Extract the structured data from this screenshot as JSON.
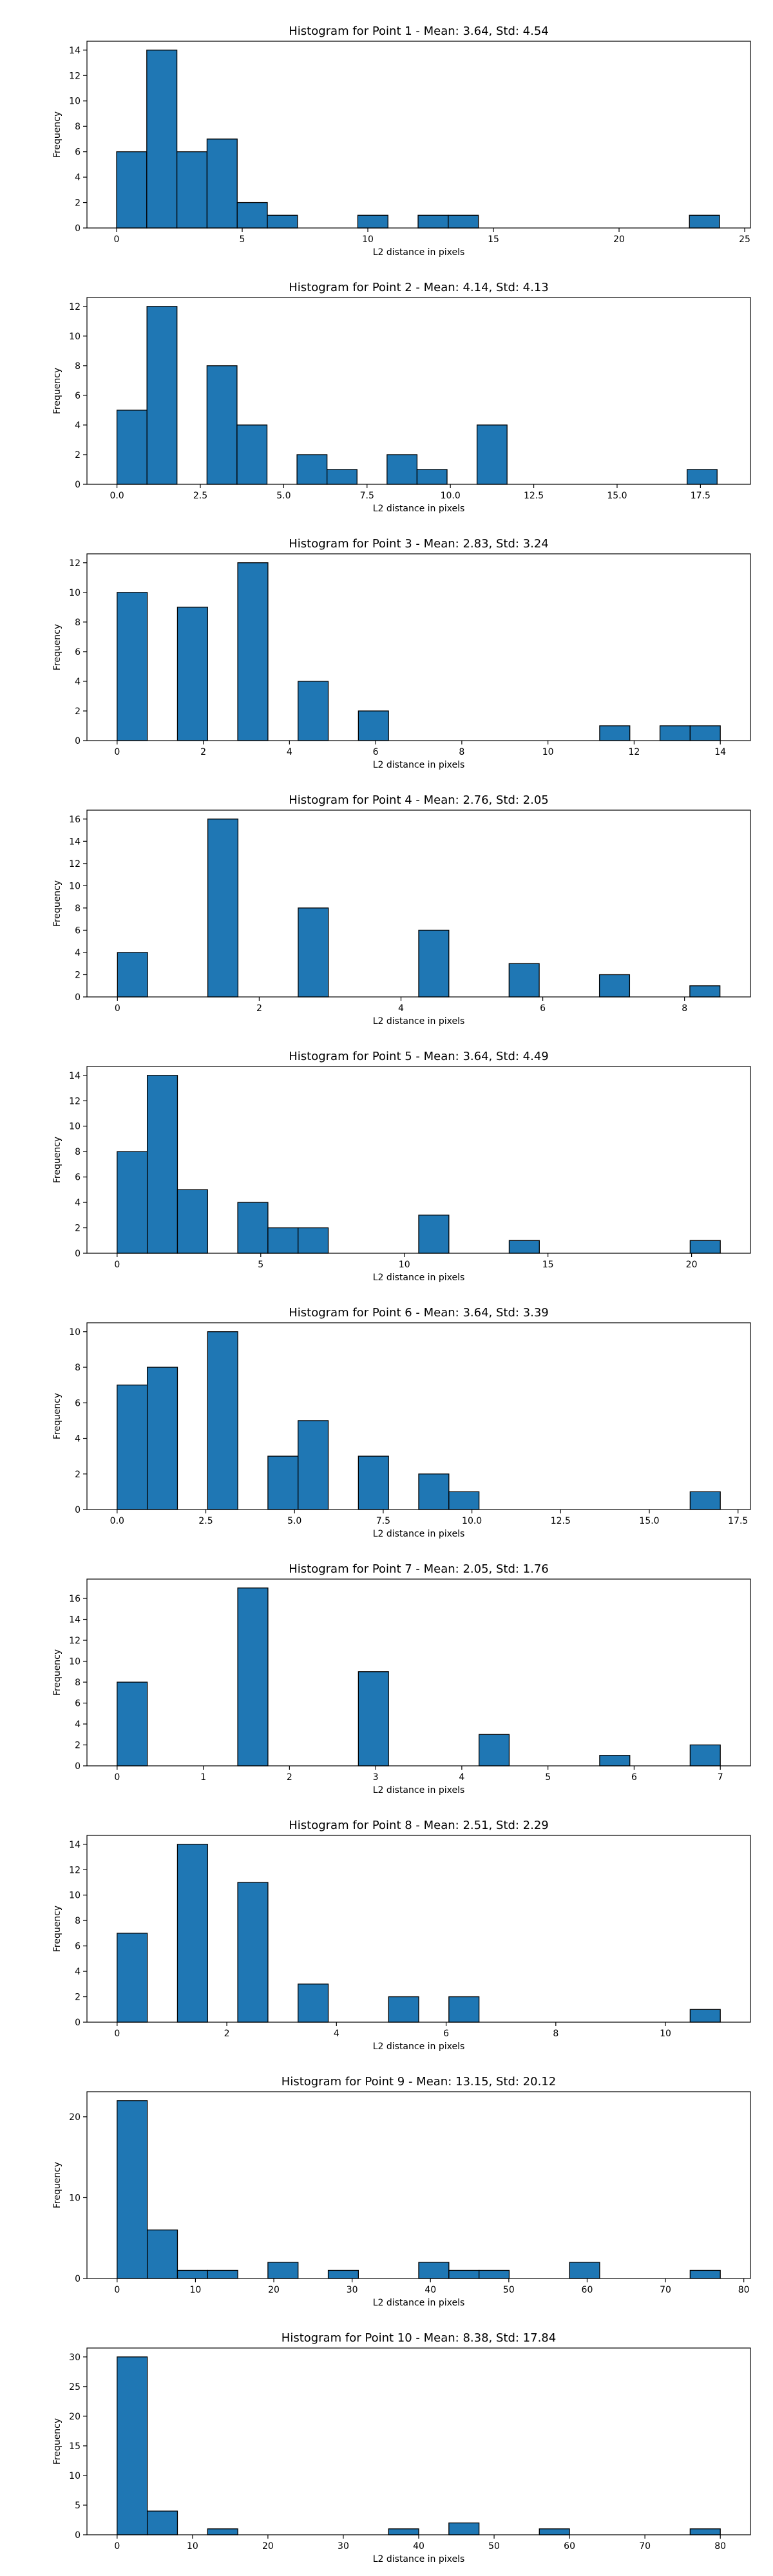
{
  "chart_data": [
    {
      "type": "bar",
      "title": "Histogram for Point 1 - Mean: 3.64, Std: 4.54",
      "xlabel": "L2 distance in pixels",
      "ylabel": "Frequency",
      "xlim": [
        -1.18,
        25.23
      ],
      "ylim": [
        0,
        14.7
      ],
      "xticks": [
        0,
        5,
        10,
        15,
        20,
        25
      ],
      "yticks": [
        0,
        2,
        4,
        6,
        8,
        10,
        12,
        14
      ],
      "bin_edges": [
        0.0,
        1.2,
        2.4,
        3.6,
        4.8,
        6.0,
        7.2,
        8.4,
        9.6,
        10.8,
        12.0,
        13.2,
        14.4,
        15.6,
        16.8,
        18.0,
        19.2,
        20.4,
        21.6,
        22.8,
        24.0
      ],
      "values": [
        6,
        14,
        6,
        7,
        2,
        1,
        0,
        0,
        1,
        0,
        1,
        1,
        0,
        0,
        0,
        0,
        0,
        0,
        0,
        1
      ]
    },
    {
      "type": "bar",
      "title": "Histogram for Point 2 - Mean: 4.14, Std: 4.13",
      "xlabel": "L2 distance in pixels",
      "ylabel": "Frequency",
      "xlim": [
        -0.9,
        19.0
      ],
      "ylim": [
        0,
        12.6
      ],
      "xticks": [
        0.0,
        2.5,
        5.0,
        7.5,
        10.0,
        12.5,
        15.0,
        17.5
      ],
      "yticks": [
        0,
        2,
        4,
        6,
        8,
        10,
        12
      ],
      "bin_edges": [
        0.0,
        0.9,
        1.8,
        2.7,
        3.6,
        4.5,
        5.4,
        6.3,
        7.2,
        8.1,
        9.0,
        9.9,
        10.8,
        11.7,
        12.6,
        13.5,
        14.4,
        15.3,
        16.2,
        17.1,
        18.0
      ],
      "values": [
        5,
        12,
        0,
        8,
        4,
        0,
        2,
        1,
        0,
        2,
        1,
        0,
        4,
        0,
        0,
        0,
        0,
        0,
        0,
        1
      ]
    },
    {
      "type": "bar",
      "title": "Histogram for Point 3 - Mean: 2.83, Std: 3.24",
      "xlabel": "L2 distance in pixels",
      "ylabel": "Frequency",
      "xlim": [
        -0.7,
        14.7
      ],
      "ylim": [
        0,
        12.6
      ],
      "xticks": [
        0,
        2,
        4,
        6,
        8,
        10,
        12,
        14
      ],
      "yticks": [
        0,
        2,
        4,
        6,
        8,
        10,
        12
      ],
      "bin_edges": [
        0.0,
        0.7,
        1.4,
        2.1,
        2.8,
        3.5,
        4.2,
        4.9,
        5.6,
        6.3,
        7.0,
        7.7,
        8.4,
        9.1,
        9.8,
        10.5,
        11.2,
        11.9,
        12.6,
        13.3,
        14.0
      ],
      "values": [
        10,
        0,
        9,
        0,
        12,
        0,
        4,
        0,
        2,
        0,
        0,
        0,
        0,
        0,
        0,
        0,
        1,
        0,
        1,
        1
      ]
    },
    {
      "type": "bar",
      "title": "Histogram for Point 4 - Mean: 2.76, Std: 2.05",
      "xlabel": "L2 distance in pixels",
      "ylabel": "Frequency",
      "xlim": [
        -0.43,
        8.93
      ],
      "ylim": [
        0,
        16.8
      ],
      "xticks": [
        0,
        2,
        4,
        6,
        8
      ],
      "yticks": [
        0,
        2,
        4,
        6,
        8,
        10,
        12,
        14,
        16
      ],
      "bin_edges": [
        0.0,
        0.425,
        0.85,
        1.275,
        1.7,
        2.125,
        2.55,
        2.975,
        3.4,
        3.825,
        4.25,
        4.675,
        5.1,
        5.525,
        5.95,
        6.375,
        6.8,
        7.225,
        7.65,
        8.075,
        8.5
      ],
      "values": [
        4,
        0,
        0,
        16,
        0,
        0,
        8,
        0,
        0,
        0,
        6,
        0,
        0,
        3,
        0,
        0,
        2,
        0,
        0,
        1
      ]
    },
    {
      "type": "bar",
      "title": "Histogram for Point 5 - Mean: 3.64, Std: 4.49",
      "xlabel": "L2 distance in pixels",
      "ylabel": "Frequency",
      "xlim": [
        -1.05,
        22.05
      ],
      "ylim": [
        0,
        14.7
      ],
      "xticks": [
        0,
        5,
        10,
        15,
        20
      ],
      "yticks": [
        0,
        2,
        4,
        6,
        8,
        10,
        12,
        14
      ],
      "bin_edges": [
        0.0,
        1.05,
        2.1,
        3.15,
        4.2,
        5.25,
        6.3,
        7.35,
        8.4,
        9.45,
        10.5,
        11.55,
        12.6,
        13.65,
        14.7,
        15.75,
        16.8,
        17.85,
        18.9,
        19.95,
        21.0
      ],
      "values": [
        8,
        14,
        5,
        0,
        4,
        2,
        2,
        0,
        0,
        0,
        3,
        0,
        0,
        1,
        0,
        0,
        0,
        0,
        0,
        1
      ]
    },
    {
      "type": "bar",
      "title": "Histogram for Point 6 - Mean: 3.64, Std: 3.39",
      "xlabel": "L2 distance in pixels",
      "ylabel": "Frequency",
      "xlim": [
        -0.85,
        17.85
      ],
      "ylim": [
        0,
        10.5
      ],
      "xticks": [
        0.0,
        2.5,
        5.0,
        7.5,
        10.0,
        12.5,
        15.0,
        17.5
      ],
      "yticks": [
        0,
        2,
        4,
        6,
        8,
        10
      ],
      "bin_edges": [
        0.0,
        0.85,
        1.7,
        2.55,
        3.4,
        4.25,
        5.1,
        5.95,
        6.8,
        7.65,
        8.5,
        9.35,
        10.2,
        11.05,
        11.9,
        12.75,
        13.6,
        14.45,
        15.3,
        16.15,
        17.0
      ],
      "values": [
        7,
        8,
        0,
        10,
        0,
        3,
        5,
        0,
        3,
        0,
        2,
        1,
        0,
        0,
        0,
        0,
        0,
        0,
        0,
        1
      ]
    },
    {
      "type": "bar",
      "title": "Histogram for Point 7 - Mean: 2.05, Std: 1.76",
      "xlabel": "L2 distance in pixels",
      "ylabel": "Frequency",
      "xlim": [
        -0.35,
        7.35
      ],
      "ylim": [
        0,
        17.85
      ],
      "xticks": [
        0,
        1,
        2,
        3,
        4,
        5,
        6,
        7
      ],
      "yticks": [
        0,
        2,
        4,
        6,
        8,
        10,
        12,
        14,
        16
      ],
      "bin_edges": [
        0.0,
        0.35,
        0.7,
        1.05,
        1.4,
        1.75,
        2.1,
        2.45,
        2.8,
        3.15,
        3.5,
        3.85,
        4.2,
        4.55,
        4.9,
        5.25,
        5.6,
        5.95,
        6.3,
        6.65,
        7.0
      ],
      "values": [
        8,
        0,
        0,
        0,
        17,
        0,
        0,
        0,
        9,
        0,
        0,
        0,
        3,
        0,
        0,
        0,
        1,
        0,
        0,
        2
      ]
    },
    {
      "type": "bar",
      "title": "Histogram for Point 8 - Mean: 2.51, Std: 2.29",
      "xlabel": "L2 distance in pixels",
      "ylabel": "Frequency",
      "xlim": [
        -0.55,
        11.55
      ],
      "ylim": [
        0,
        14.7
      ],
      "xticks": [
        0,
        2,
        4,
        6,
        8,
        10
      ],
      "yticks": [
        0,
        2,
        4,
        6,
        8,
        10,
        12,
        14
      ],
      "bin_edges": [
        0.0,
        0.55,
        1.1,
        1.65,
        2.2,
        2.75,
        3.3,
        3.85,
        4.4,
        4.95,
        5.5,
        6.05,
        6.6,
        7.15,
        7.7,
        8.25,
        8.8,
        9.35,
        9.9,
        10.45,
        11.0
      ],
      "values": [
        7,
        0,
        14,
        0,
        11,
        0,
        3,
        0,
        0,
        2,
        0,
        2,
        0,
        0,
        0,
        0,
        0,
        0,
        0,
        1
      ]
    },
    {
      "type": "bar",
      "title": "Histogram for Point 9 - Mean: 13.15, Std: 20.12",
      "xlabel": "L2 distance in pixels",
      "ylabel": "Frequency",
      "xlim": [
        -3.85,
        80.85
      ],
      "ylim": [
        0,
        23.1
      ],
      "xticks": [
        0,
        10,
        20,
        30,
        40,
        50,
        60,
        70,
        80
      ],
      "yticks": [
        0,
        10,
        20
      ],
      "bin_edges": [
        0.0,
        3.85,
        7.7,
        11.55,
        15.4,
        19.25,
        23.1,
        26.95,
        30.8,
        34.65,
        38.5,
        42.35,
        46.2,
        50.05,
        53.9,
        57.75,
        61.6,
        65.45,
        69.3,
        73.15,
        77.0
      ],
      "values": [
        22,
        6,
        1,
        1,
        0,
        2,
        0,
        1,
        0,
        0,
        2,
        1,
        1,
        0,
        0,
        2,
        0,
        0,
        0,
        1
      ]
    },
    {
      "type": "bar",
      "title": "Histogram for Point 10 - Mean: 8.38, Std: 17.84",
      "xlabel": "L2 distance in pixels",
      "ylabel": "Frequency",
      "xlim": [
        -4.0,
        84.0
      ],
      "ylim": [
        0,
        31.5
      ],
      "xticks": [
        0,
        10,
        20,
        30,
        40,
        50,
        60,
        70,
        80
      ],
      "yticks": [
        0,
        5,
        10,
        15,
        20,
        25,
        30
      ],
      "bin_edges": [
        0.0,
        4.0,
        8.0,
        12.0,
        16.0,
        20.0,
        24.0,
        28.0,
        32.0,
        36.0,
        40.0,
        44.0,
        48.0,
        52.0,
        56.0,
        60.0,
        64.0,
        68.0,
        72.0,
        76.0,
        80.0
      ],
      "values": [
        30,
        4,
        0,
        1,
        0,
        0,
        0,
        0,
        0,
        1,
        0,
        2,
        0,
        0,
        1,
        0,
        0,
        0,
        0,
        1
      ]
    }
  ],
  "colors": {
    "bar_fill": "#1f77b4",
    "bar_edge": "#000000",
    "axes": "#000000",
    "background": "#ffffff"
  }
}
